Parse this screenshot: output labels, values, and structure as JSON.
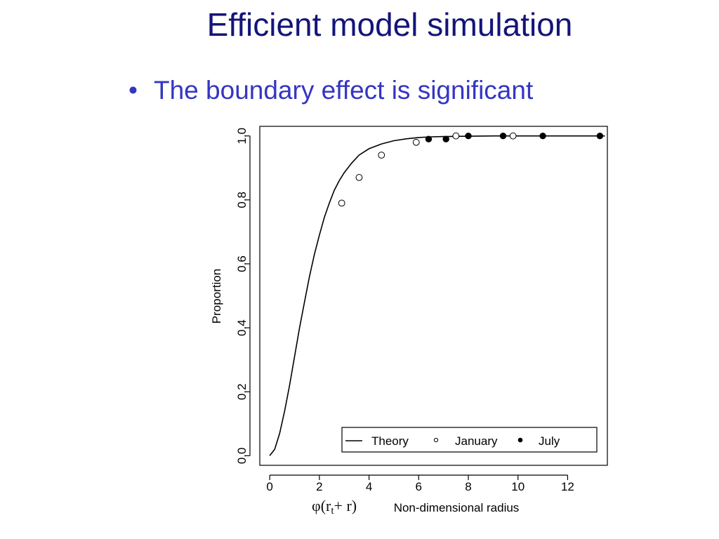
{
  "slide": {
    "title": "Efficient model simulation",
    "bullet_marker": "•",
    "bullet": "The boundary effect is significant"
  },
  "formula": {
    "prefix": "φ(r",
    "subscript": "t",
    "suffix": "+ r)"
  },
  "colors": {
    "title": "#14147a",
    "bullet": "#3535c4",
    "plot": "#000000"
  },
  "chart_data": {
    "type": "line",
    "xlabel": "Non-dimensional radius",
    "ylabel": "Proportion",
    "xlim": [
      -0.4,
      13.6
    ],
    "ylim": [
      -0.03,
      1.03
    ],
    "xticks": [
      "0",
      "2",
      "4",
      "6",
      "8",
      "10",
      "12"
    ],
    "yticks": [
      "0.0",
      "0.2",
      "0.4",
      "0.6",
      "0.8",
      "1.0"
    ],
    "grid": false,
    "legend_position": "bottom-right",
    "series": [
      {
        "name": "Theory",
        "kind": "line",
        "x": [
          0.0,
          0.2,
          0.4,
          0.6,
          0.8,
          1.0,
          1.2,
          1.4,
          1.6,
          1.8,
          2.0,
          2.2,
          2.4,
          2.6,
          2.8,
          3.0,
          3.3,
          3.6,
          4.0,
          4.5,
          5.0,
          5.5,
          6.0,
          6.5,
          7.0,
          8.0,
          9.0,
          10.0,
          11.0,
          12.0,
          13.0,
          13.5
        ],
        "y": [
          0.0,
          0.02,
          0.07,
          0.14,
          0.22,
          0.31,
          0.4,
          0.48,
          0.56,
          0.63,
          0.69,
          0.745,
          0.79,
          0.83,
          0.86,
          0.885,
          0.915,
          0.94,
          0.96,
          0.975,
          0.985,
          0.991,
          0.995,
          0.997,
          0.998,
          0.999,
          1.0,
          1.0,
          1.0,
          1.0,
          1.0,
          1.0
        ]
      },
      {
        "name": "January",
        "kind": "points",
        "marker": "open-circle",
        "x": [
          2.9,
          3.6,
          4.5,
          5.9,
          7.5,
          9.8
        ],
        "y": [
          0.79,
          0.87,
          0.94,
          0.98,
          1.0,
          1.0
        ]
      },
      {
        "name": "July",
        "kind": "points",
        "marker": "filled-circle",
        "x": [
          6.4,
          7.1,
          8.0,
          9.4,
          11.0,
          13.3
        ],
        "y": [
          0.99,
          0.99,
          1.0,
          1.0,
          1.0,
          1.0
        ]
      }
    ]
  }
}
